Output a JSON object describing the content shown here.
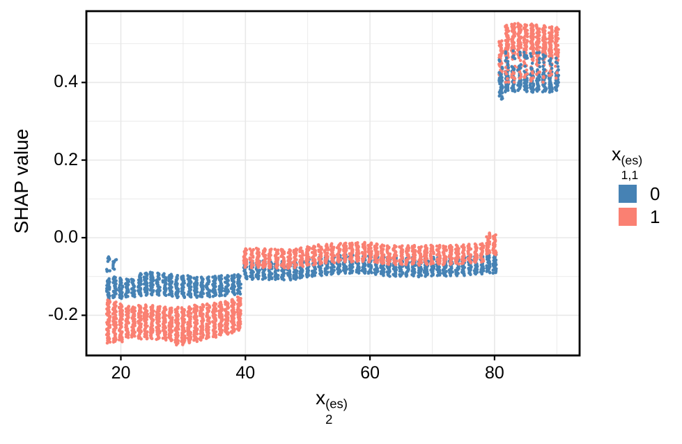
{
  "chart_data": {
    "type": "scatter",
    "title": "",
    "y_axis": {
      "title": "SHAP value",
      "ticks": [
        {
          "v": 0.4,
          "label": "0.4"
        },
        {
          "v": 0.2,
          "label": "0.2"
        },
        {
          "v": 0.0,
          "label": "0.0"
        },
        {
          "v": -0.2,
          "label": "-0.2"
        }
      ],
      "minor": [
        0.5,
        0.3,
        0.1,
        -0.1,
        -0.3
      ],
      "range": [
        -0.304,
        0.584
      ]
    },
    "x_axis": {
      "title": {
        "base": "x",
        "sub": "2",
        "sup": "(es)"
      },
      "ticks": [
        {
          "v": 20,
          "label": "20"
        },
        {
          "v": 40,
          "label": "40"
        },
        {
          "v": 60,
          "label": "60"
        },
        {
          "v": 80,
          "label": "80"
        }
      ],
      "minor": [
        30,
        50,
        70,
        90
      ],
      "range": [
        14.5,
        93.6
      ]
    },
    "legend": {
      "title": {
        "base": "x",
        "sub": "1,1",
        "sup": "(es)"
      },
      "items": [
        {
          "label": "0",
          "color": "#4682B4"
        },
        {
          "label": "1",
          "color": "#FA8072"
        }
      ],
      "position": "right"
    },
    "style": {
      "grid_color": "#E8E8E8",
      "panel_border_color": "#000000",
      "tick_color": "#000000",
      "dot_radius": 2.3
    },
    "series_note": "clusters = vertical jittered dot strips; format [x, series_index, y_lo, y_hi, density_weight(optional)]",
    "clusters": [
      [
        18,
        0,
        -0.161,
        -0.105
      ],
      [
        19,
        0,
        -0.156,
        -0.1
      ],
      [
        20,
        0,
        -0.157,
        -0.103
      ],
      [
        21,
        0,
        -0.154,
        -0.106
      ],
      [
        22,
        0,
        -0.153,
        -0.106
      ],
      [
        23,
        0,
        -0.15,
        -0.092
      ],
      [
        24,
        0,
        -0.149,
        -0.09
      ],
      [
        25,
        0,
        -0.148,
        -0.088
      ],
      [
        26,
        0,
        -0.149,
        -0.09
      ],
      [
        27,
        0,
        -0.15,
        -0.092
      ],
      [
        28,
        0,
        -0.152,
        -0.094
      ],
      [
        29,
        0,
        -0.155,
        -0.097
      ],
      [
        30,
        0,
        -0.155,
        -0.098
      ],
      [
        31,
        0,
        -0.154,
        -0.097
      ],
      [
        32,
        0,
        -0.155,
        -0.101
      ],
      [
        33,
        0,
        -0.154,
        -0.101
      ],
      [
        34,
        0,
        -0.153,
        -0.1
      ],
      [
        35,
        0,
        -0.152,
        -0.099
      ],
      [
        36,
        0,
        -0.151,
        -0.097
      ],
      [
        37,
        0,
        -0.15,
        -0.097
      ],
      [
        38,
        0,
        -0.148,
        -0.095
      ],
      [
        39,
        0,
        -0.146,
        -0.094
      ],
      [
        40,
        0,
        -0.107,
        -0.058
      ],
      [
        41,
        0,
        -0.108,
        -0.059
      ],
      [
        42,
        0,
        -0.107,
        -0.058
      ],
      [
        43,
        0,
        -0.108,
        -0.059
      ],
      [
        44,
        0,
        -0.109,
        -0.06
      ],
      [
        45,
        0,
        -0.109,
        -0.06
      ],
      [
        46,
        0,
        -0.109,
        -0.06
      ],
      [
        47,
        0,
        -0.11,
        -0.061
      ],
      [
        48,
        0,
        -0.108,
        -0.059
      ],
      [
        49,
        0,
        -0.105,
        -0.056
      ],
      [
        50,
        0,
        -0.102,
        -0.053
      ],
      [
        51,
        0,
        -0.101,
        -0.052
      ],
      [
        52,
        0,
        -0.098,
        -0.049
      ],
      [
        53,
        0,
        -0.096,
        -0.047
      ],
      [
        54,
        0,
        -0.095,
        -0.046
      ],
      [
        55,
        0,
        -0.094,
        -0.045
      ],
      [
        56,
        0,
        -0.093,
        -0.044
      ],
      [
        57,
        0,
        -0.093,
        -0.044
      ],
      [
        58,
        0,
        -0.092,
        -0.043
      ],
      [
        59,
        0,
        -0.092,
        -0.043
      ],
      [
        60,
        0,
        -0.093,
        -0.044
      ],
      [
        61,
        0,
        -0.095,
        -0.046
      ],
      [
        62,
        0,
        -0.098,
        -0.049
      ],
      [
        63,
        0,
        -0.1,
        -0.051
      ],
      [
        64,
        0,
        -0.1,
        -0.051
      ],
      [
        65,
        0,
        -0.1,
        -0.051
      ],
      [
        66,
        0,
        -0.1,
        -0.051
      ],
      [
        67,
        0,
        -0.099,
        -0.05
      ],
      [
        68,
        0,
        -0.102,
        -0.053
      ],
      [
        69,
        0,
        -0.1,
        -0.051
      ],
      [
        70,
        0,
        -0.099,
        -0.05
      ],
      [
        71,
        0,
        -0.099,
        -0.05
      ],
      [
        72,
        0,
        -0.1,
        -0.051
      ],
      [
        73,
        0,
        -0.099,
        -0.05
      ],
      [
        74,
        0,
        -0.099,
        -0.05
      ],
      [
        75,
        0,
        -0.098,
        -0.049
      ],
      [
        76,
        0,
        -0.096,
        -0.047
      ],
      [
        77,
        0,
        -0.095,
        -0.046
      ],
      [
        78,
        0,
        -0.094,
        -0.045
      ],
      [
        79,
        0,
        -0.092,
        -0.04
      ],
      [
        80,
        0,
        -0.093,
        -0.042
      ],
      [
        18,
        1,
        -0.272,
        -0.16
      ],
      [
        19,
        1,
        -0.27,
        -0.165
      ],
      [
        20,
        1,
        -0.269,
        -0.17
      ],
      [
        21,
        1,
        -0.258,
        -0.176
      ],
      [
        22,
        1,
        -0.257,
        -0.178
      ],
      [
        23,
        1,
        -0.262,
        -0.174
      ],
      [
        24,
        1,
        -0.262,
        -0.173
      ],
      [
        25,
        1,
        -0.261,
        -0.174
      ],
      [
        26,
        1,
        -0.263,
        -0.176
      ],
      [
        27,
        1,
        -0.265,
        -0.178
      ],
      [
        28,
        1,
        -0.266,
        -0.18
      ],
      [
        29,
        1,
        -0.277,
        -0.179
      ],
      [
        30,
        1,
        -0.277,
        -0.18
      ],
      [
        31,
        1,
        -0.272,
        -0.178
      ],
      [
        32,
        1,
        -0.268,
        -0.173
      ],
      [
        33,
        1,
        -0.265,
        -0.171
      ],
      [
        34,
        1,
        -0.261,
        -0.17
      ],
      [
        35,
        1,
        -0.258,
        -0.168
      ],
      [
        36,
        1,
        -0.252,
        -0.166
      ],
      [
        37,
        1,
        -0.25,
        -0.163
      ],
      [
        38,
        1,
        -0.246,
        -0.158
      ],
      [
        39,
        1,
        -0.24,
        -0.152
      ],
      [
        40,
        1,
        -0.077,
        -0.027
      ],
      [
        41,
        1,
        -0.078,
        -0.028
      ],
      [
        42,
        1,
        -0.077,
        -0.027
      ],
      [
        43,
        1,
        -0.078,
        -0.028
      ],
      [
        44,
        1,
        -0.079,
        -0.029
      ],
      [
        45,
        1,
        -0.079,
        -0.029
      ],
      [
        46,
        1,
        -0.079,
        -0.029
      ],
      [
        47,
        1,
        -0.08,
        -0.03
      ],
      [
        48,
        1,
        -0.078,
        -0.028
      ],
      [
        49,
        1,
        -0.075,
        -0.025
      ],
      [
        50,
        1,
        -0.072,
        -0.022
      ],
      [
        51,
        1,
        -0.071,
        -0.021
      ],
      [
        52,
        1,
        -0.068,
        -0.018
      ],
      [
        53,
        1,
        -0.066,
        -0.016
      ],
      [
        54,
        1,
        -0.065,
        -0.015
      ],
      [
        55,
        1,
        -0.064,
        -0.014
      ],
      [
        56,
        1,
        -0.063,
        -0.013
      ],
      [
        57,
        1,
        -0.063,
        -0.013
      ],
      [
        58,
        1,
        -0.062,
        -0.012
      ],
      [
        59,
        1,
        -0.062,
        -0.012
      ],
      [
        60,
        1,
        -0.063,
        -0.013
      ],
      [
        61,
        1,
        -0.065,
        -0.015
      ],
      [
        62,
        1,
        -0.068,
        -0.018
      ],
      [
        63,
        1,
        -0.07,
        -0.02
      ],
      [
        64,
        1,
        -0.07,
        -0.02
      ],
      [
        65,
        1,
        -0.07,
        -0.02
      ],
      [
        66,
        1,
        -0.07,
        -0.02
      ],
      [
        67,
        1,
        -0.069,
        -0.019
      ],
      [
        68,
        1,
        -0.072,
        -0.022
      ],
      [
        69,
        1,
        -0.07,
        -0.02
      ],
      [
        70,
        1,
        -0.069,
        -0.019
      ],
      [
        71,
        1,
        -0.069,
        -0.019
      ],
      [
        72,
        1,
        -0.07,
        -0.02
      ],
      [
        73,
        1,
        -0.069,
        -0.019
      ],
      [
        74,
        1,
        -0.069,
        -0.019
      ],
      [
        75,
        1,
        -0.068,
        -0.018
      ],
      [
        76,
        1,
        -0.066,
        -0.016
      ],
      [
        77,
        1,
        -0.065,
        -0.015
      ],
      [
        78,
        1,
        -0.064,
        -0.014
      ],
      [
        79,
        1,
        -0.043,
        0.013
      ],
      [
        80,
        1,
        -0.045,
        0.008
      ],
      [
        81,
        1,
        0.418,
        0.508
      ],
      [
        81,
        0,
        0.356,
        0.426
      ],
      [
        81,
        0,
        0.426,
        0.46,
        0.25
      ],
      [
        82,
        1,
        0.462,
        0.548
      ],
      [
        82,
        0,
        0.375,
        0.432
      ],
      [
        82,
        1,
        0.4,
        0.462,
        0.35
      ],
      [
        82,
        0,
        0.432,
        0.48,
        0.35
      ],
      [
        83,
        1,
        0.465,
        0.553
      ],
      [
        83,
        0,
        0.376,
        0.43
      ],
      [
        83,
        1,
        0.4,
        0.465,
        0.35
      ],
      [
        83,
        0,
        0.43,
        0.482,
        0.35
      ],
      [
        84,
        1,
        0.468,
        0.553
      ],
      [
        84,
        0,
        0.378,
        0.432
      ],
      [
        84,
        1,
        0.405,
        0.468,
        0.3
      ],
      [
        84,
        0,
        0.432,
        0.478,
        0.3
      ],
      [
        85,
        1,
        0.465,
        0.55
      ],
      [
        85,
        0,
        0.375,
        0.43
      ],
      [
        85,
        1,
        0.4,
        0.465,
        0.35
      ],
      [
        85,
        0,
        0.43,
        0.48,
        0.35
      ],
      [
        86,
        1,
        0.462,
        0.551
      ],
      [
        86,
        0,
        0.374,
        0.43
      ],
      [
        86,
        1,
        0.4,
        0.462,
        0.35
      ],
      [
        86,
        0,
        0.43,
        0.476,
        0.3
      ],
      [
        87,
        1,
        0.465,
        0.549
      ],
      [
        87,
        0,
        0.377,
        0.43
      ],
      [
        87,
        1,
        0.405,
        0.465,
        0.3
      ],
      [
        87,
        0,
        0.43,
        0.478,
        0.3
      ],
      [
        88,
        1,
        0.463,
        0.547
      ],
      [
        88,
        0,
        0.375,
        0.428
      ],
      [
        88,
        1,
        0.4,
        0.463,
        0.35
      ],
      [
        88,
        0,
        0.428,
        0.475,
        0.35
      ],
      [
        89,
        1,
        0.46,
        0.545
      ],
      [
        89,
        0,
        0.374,
        0.428
      ],
      [
        89,
        1,
        0.4,
        0.46,
        0.3
      ],
      [
        89,
        0,
        0.428,
        0.472,
        0.3
      ],
      [
        90,
        1,
        0.462,
        0.542
      ],
      [
        90,
        0,
        0.378,
        0.43
      ],
      [
        90,
        1,
        0.405,
        0.462,
        0.3
      ],
      [
        90,
        0,
        0.43,
        0.47,
        0.25
      ],
      [
        18,
        0,
        -0.088,
        -0.049,
        0.45
      ],
      [
        19,
        0,
        -0.086,
        -0.05,
        0.45
      ]
    ]
  }
}
